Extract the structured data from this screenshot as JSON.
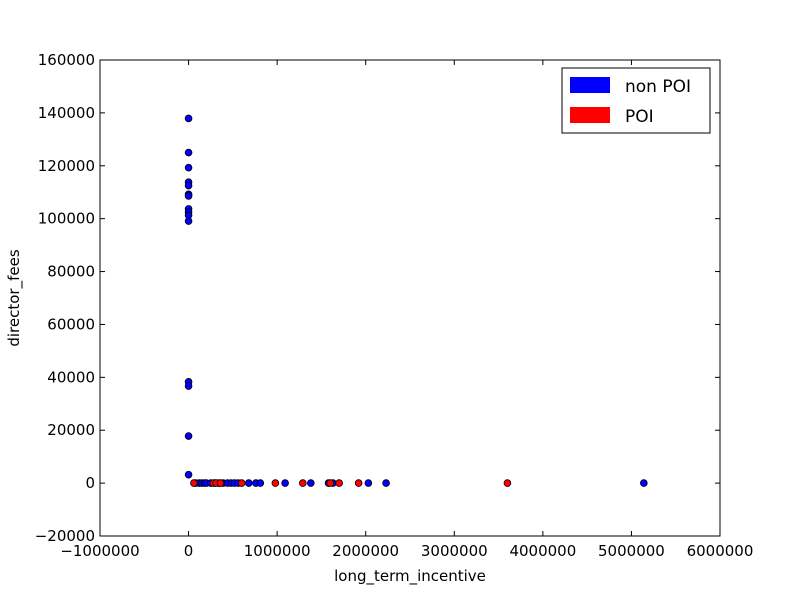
{
  "chart_data": {
    "type": "scatter",
    "title": "",
    "xlabel": "long_term_incentive",
    "ylabel": "director_fees",
    "xlim": [
      -1000000,
      6000000
    ],
    "ylim": [
      -20000,
      160000
    ],
    "xticks": [
      -1000000,
      0,
      1000000,
      2000000,
      3000000,
      4000000,
      5000000,
      6000000
    ],
    "xtick_labels": [
      "−1000000",
      "0",
      "1000000",
      "2000000",
      "3000000",
      "4000000",
      "5000000",
      "6000000"
    ],
    "yticks": [
      -20000,
      0,
      20000,
      40000,
      60000,
      80000,
      100000,
      120000,
      140000,
      160000
    ],
    "ytick_labels": [
      "−20000",
      "0",
      "20000",
      "40000",
      "60000",
      "80000",
      "100000",
      "120000",
      "140000",
      "160000"
    ],
    "grid": false,
    "legend": {
      "placement": "top-right"
    },
    "series": [
      {
        "name": "non POI",
        "color": "#0000ff",
        "points": [
          [
            0,
            137900
          ],
          [
            0,
            125000
          ],
          [
            0,
            119300
          ],
          [
            0,
            113800
          ],
          [
            0,
            112500
          ],
          [
            0,
            109200
          ],
          [
            0,
            108600
          ],
          [
            0,
            103700
          ],
          [
            0,
            102500
          ],
          [
            0,
            101300
          ],
          [
            0,
            99100
          ],
          [
            0,
            38300
          ],
          [
            0,
            36700
          ],
          [
            0,
            17800
          ],
          [
            0,
            3200
          ],
          [
            80000,
            0
          ],
          [
            120000,
            0
          ],
          [
            150000,
            0
          ],
          [
            180000,
            0
          ],
          [
            200000,
            0
          ],
          [
            250000,
            0
          ],
          [
            300000,
            0
          ],
          [
            340000,
            0
          ],
          [
            390000,
            0
          ],
          [
            440000,
            0
          ],
          [
            480000,
            0
          ],
          [
            520000,
            0
          ],
          [
            560000,
            0
          ],
          [
            680000,
            0
          ],
          [
            760000,
            0
          ],
          [
            810000,
            0
          ],
          [
            1090000,
            0
          ],
          [
            1380000,
            0
          ],
          [
            1580000,
            0
          ],
          [
            1630000,
            0
          ],
          [
            2030000,
            0
          ],
          [
            2230000,
            0
          ],
          [
            5140000,
            0
          ]
        ]
      },
      {
        "name": "POI",
        "color": "#ff0000",
        "points": [
          [
            60000,
            0
          ],
          [
            280000,
            0
          ],
          [
            310000,
            0
          ],
          [
            360000,
            0
          ],
          [
            600000,
            0
          ],
          [
            980000,
            0
          ],
          [
            1290000,
            0
          ],
          [
            1600000,
            0
          ],
          [
            1700000,
            0
          ],
          [
            1920000,
            0
          ],
          [
            3600000,
            0
          ]
        ]
      }
    ]
  }
}
